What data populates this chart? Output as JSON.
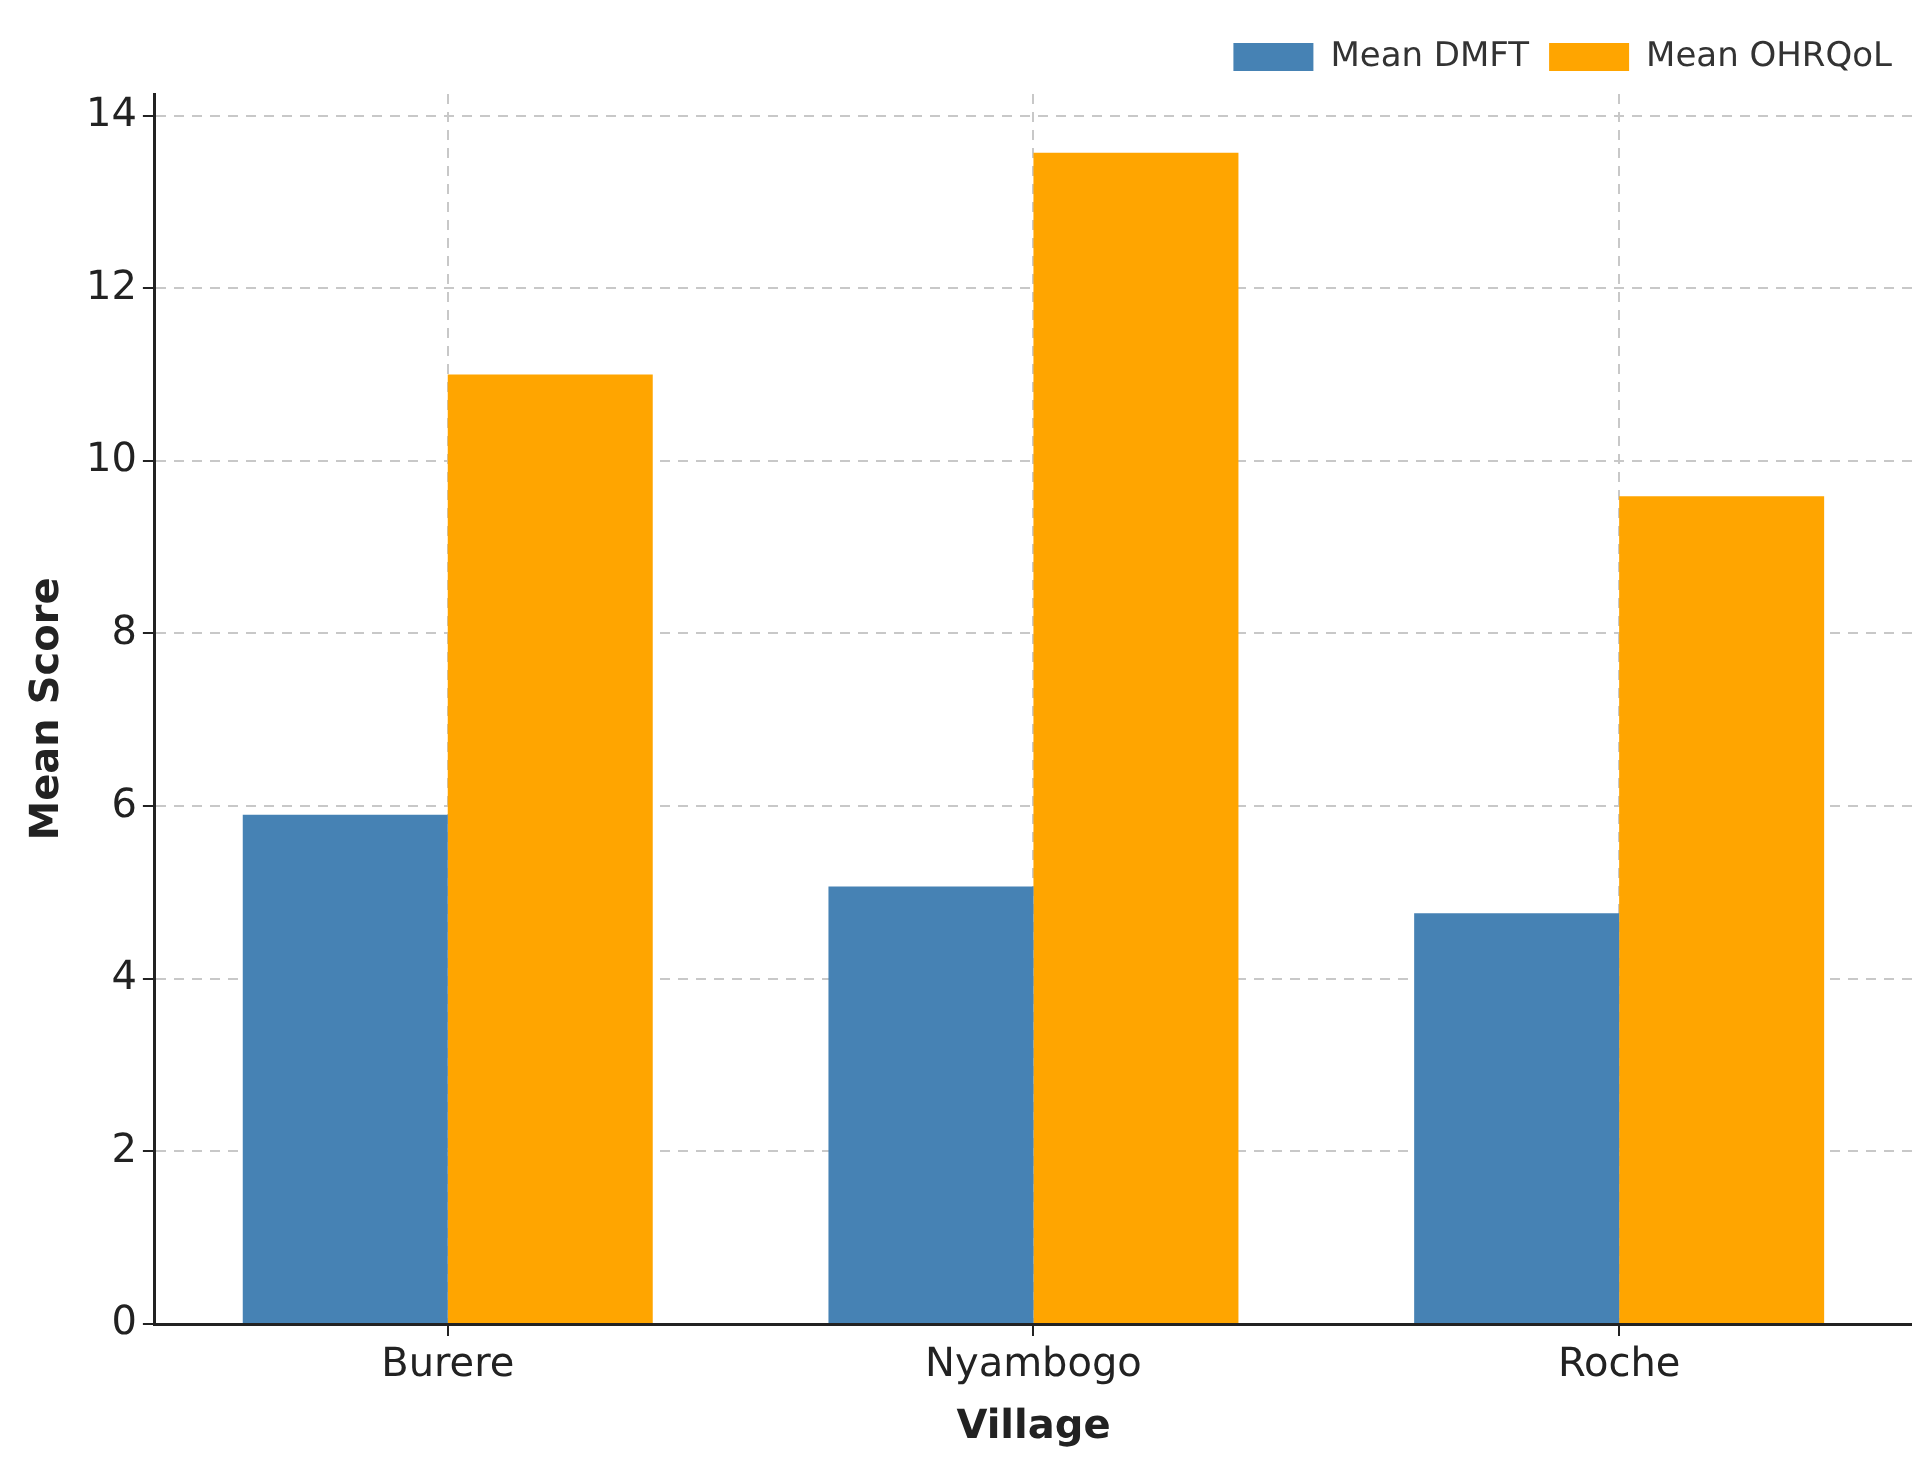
{
  "chart_data": {
    "type": "bar",
    "xlabel": "Village",
    "ylabel": "Mean Score",
    "categories": [
      "Burere",
      "Nyambogo",
      "Roche"
    ],
    "series": [
      {
        "name": "Mean DMFT",
        "color": "#4682b4",
        "values": [
          5.9,
          5.07,
          4.76
        ]
      },
      {
        "name": "Mean OHRQoL",
        "color": "#ffa500",
        "values": [
          11.0,
          13.57,
          9.59
        ]
      }
    ],
    "ylim": [
      0,
      14.25
    ],
    "yticks": [
      0,
      2,
      4,
      6,
      8,
      10,
      12,
      14
    ],
    "grid": true,
    "legend": "top right"
  }
}
